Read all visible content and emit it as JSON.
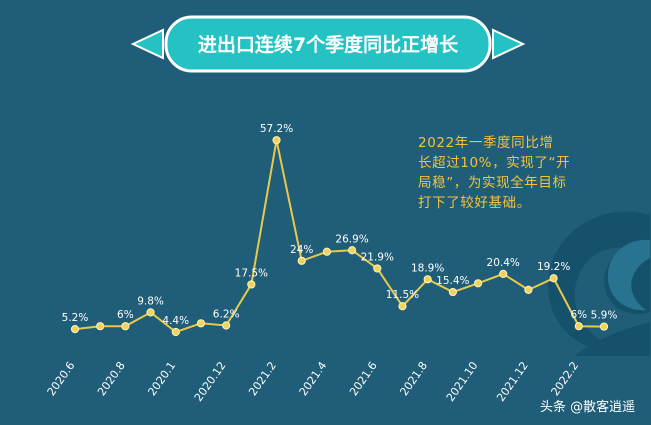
{
  "title": "进出口连续7个季度同比正增长",
  "note_lines": [
    "2022年一季度同比增",
    "长超过10%，实现了“开",
    "局稳”，为实现全年目标",
    "打下了较好基础。"
  ],
  "watermark": "头条 @散客逍遥",
  "colors": {
    "background": "#1f5d78",
    "banner_fill": "#25c2c4",
    "banner_border": "#ffffff",
    "line": "#e8c94b",
    "point": "#f0d35a",
    "note": "#f3c43a"
  },
  "chart_data": {
    "type": "line",
    "title": "进出口连续7个季度同比正增长",
    "xlabel": "",
    "ylabel": "",
    "ylim": [
      0,
      60
    ],
    "x_tick_labels": [
      "2020.6",
      "2020.8",
      "2020.1",
      "2020.12",
      "2021.2",
      "2021.4",
      "2021.6",
      "2021.8",
      "2021.10",
      "2021.12",
      "2022.2"
    ],
    "series": [
      {
        "points": [
          {
            "x": "2020.6",
            "y": 5.2,
            "label": "5.2%"
          },
          {
            "x": "2020.7",
            "y": 6.0,
            "label": ""
          },
          {
            "x": "2020.8",
            "y": 6.0,
            "label": "6%"
          },
          {
            "x": "2020.9",
            "y": 9.8,
            "label": "9.8%"
          },
          {
            "x": "2020.10",
            "y": 4.4,
            "label": "4.4%"
          },
          {
            "x": "2020.11",
            "y": 6.8,
            "label": ""
          },
          {
            "x": "2020.12",
            "y": 6.2,
            "label": "6.2%"
          },
          {
            "x": "2021.1",
            "y": 17.5,
            "label": "17.5%"
          },
          {
            "x": "2021.2",
            "y": 57.2,
            "label": "57.2%"
          },
          {
            "x": "2021.3",
            "y": 24.0,
            "label": "24%"
          },
          {
            "x": "2021.4",
            "y": 26.5,
            "label": ""
          },
          {
            "x": "2021.5",
            "y": 26.9,
            "label": "26.9%"
          },
          {
            "x": "2021.6",
            "y": 21.9,
            "label": "21.9%"
          },
          {
            "x": "2021.7",
            "y": 11.5,
            "label": "11.5%"
          },
          {
            "x": "2021.8",
            "y": 18.9,
            "label": "18.9%"
          },
          {
            "x": "2021.9",
            "y": 15.4,
            "label": "15.4%"
          },
          {
            "x": "2021.10",
            "y": 17.8,
            "label": ""
          },
          {
            "x": "2021.11",
            "y": 20.4,
            "label": "20.4%"
          },
          {
            "x": "2021.12",
            "y": 16.0,
            "label": ""
          },
          {
            "x": "2022.1",
            "y": 19.2,
            "label": "19.2%"
          },
          {
            "x": "2022.2",
            "y": 6.0,
            "label": "6%"
          },
          {
            "x": "2022.3",
            "y": 5.9,
            "label": "5.9%"
          }
        ]
      }
    ],
    "grid": false,
    "legend": "none"
  }
}
